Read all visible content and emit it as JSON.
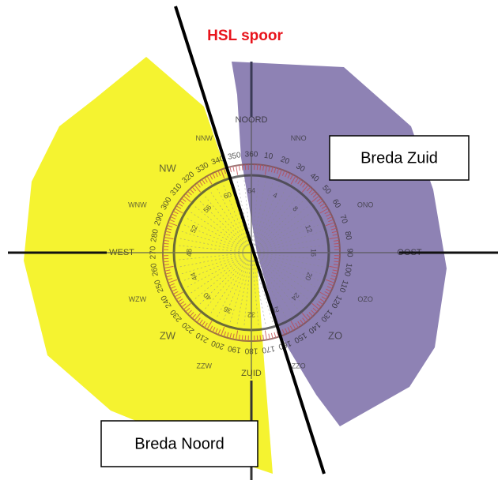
{
  "annotations": {
    "track": "HSL spoor",
    "south_area": "Breda Zuid",
    "north_area": "Breda Noord"
  },
  "compass": {
    "cardinals": [
      "NOORD",
      "OOST",
      "ZUID",
      "WEST"
    ],
    "intercardinals": [
      "NNO",
      "ONO",
      "OZO",
      "ZO",
      "ZZO",
      "ZZW",
      "ZW",
      "WZW",
      "WNW",
      "NW",
      "NNW"
    ],
    "degrees": [
      "10",
      "20",
      "30",
      "40",
      "50",
      "60",
      "70",
      "80",
      "90",
      "100",
      "110",
      "120",
      "130",
      "140",
      "150",
      "160",
      "170",
      "180",
      "190",
      "200",
      "210",
      "220",
      "230",
      "240",
      "250",
      "260",
      "270",
      "280",
      "290",
      "300",
      "310",
      "320",
      "330",
      "340",
      "350",
      "360"
    ],
    "inner": [
      "4",
      "8",
      "12",
      "16",
      "20",
      "24",
      "28",
      "32",
      "36",
      "40",
      "44",
      "48",
      "52",
      "56",
      "60",
      "64"
    ]
  }
}
